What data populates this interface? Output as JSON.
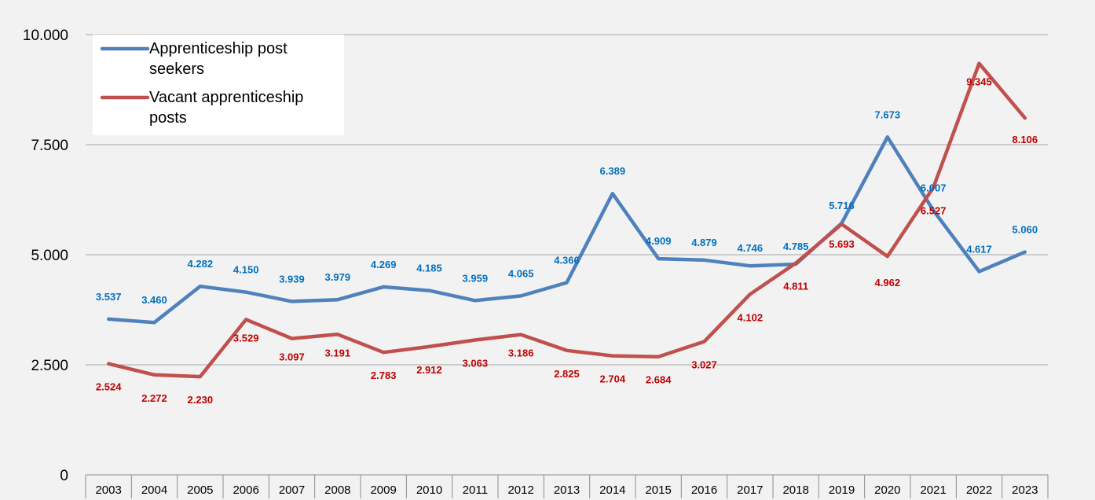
{
  "chart_data": {
    "type": "line",
    "categories": [
      "2003",
      "2004",
      "2005",
      "2006",
      "2007",
      "2008",
      "2009",
      "2010",
      "2011",
      "2012",
      "2013",
      "2014",
      "2015",
      "2016",
      "2017",
      "2018",
      "2019",
      "2020",
      "2021",
      "2022",
      "2023"
    ],
    "ylim": [
      0,
      10000
    ],
    "yticks": [
      0,
      2500,
      5000,
      7500,
      10000
    ],
    "ytick_labels": [
      "0",
      "2.500",
      "5.000",
      "7.500",
      "10.000"
    ],
    "grid": true,
    "legend_position": "top-left",
    "series": [
      {
        "name": "Apprenticeship post seekers",
        "color": "#4f81bd",
        "label_color": "#0070c0",
        "values": [
          3537,
          3460,
          4282,
          4150,
          3939,
          3979,
          4269,
          4185,
          3959,
          4065,
          4366,
          6389,
          4909,
          4879,
          4746,
          4785,
          5716,
          7673,
          6007,
          4617,
          5060
        ],
        "labels": [
          "3.537",
          "3.460",
          "4.282",
          "4.150",
          "3.939",
          "3.979",
          "4.269",
          "4.185",
          "3.959",
          "4.065",
          "4.366",
          "6.389",
          "4.909",
          "4.879",
          "4.746",
          "4.785",
          "5.716",
          "7.673",
          "6.007",
          "4.617",
          "5.060"
        ]
      },
      {
        "name": "Vacant apprenticeship posts",
        "color": "#c0504d",
        "label_color": "#c00000",
        "values": [
          2524,
          2272,
          2230,
          3529,
          3097,
          3191,
          2783,
          2912,
          3063,
          3186,
          2825,
          2704,
          2684,
          3027,
          4102,
          4811,
          5693,
          4962,
          6527,
          9345,
          8106
        ],
        "labels": [
          "2.524",
          "2.272",
          "2.230",
          "3.529",
          "3.097",
          "3.191",
          "2.783",
          "2.912",
          "3.063",
          "3.186",
          "2.825",
          "2.704",
          "2.684",
          "3.027",
          "4.102",
          "4.811",
          "5.693",
          "4.962",
          "6.527",
          "9.345",
          "8.106"
        ]
      }
    ],
    "legend": {
      "lines": [
        [
          "Apprenticeship post",
          "seekers"
        ],
        [
          "Vacant apprenticeship",
          "posts"
        ]
      ]
    }
  }
}
